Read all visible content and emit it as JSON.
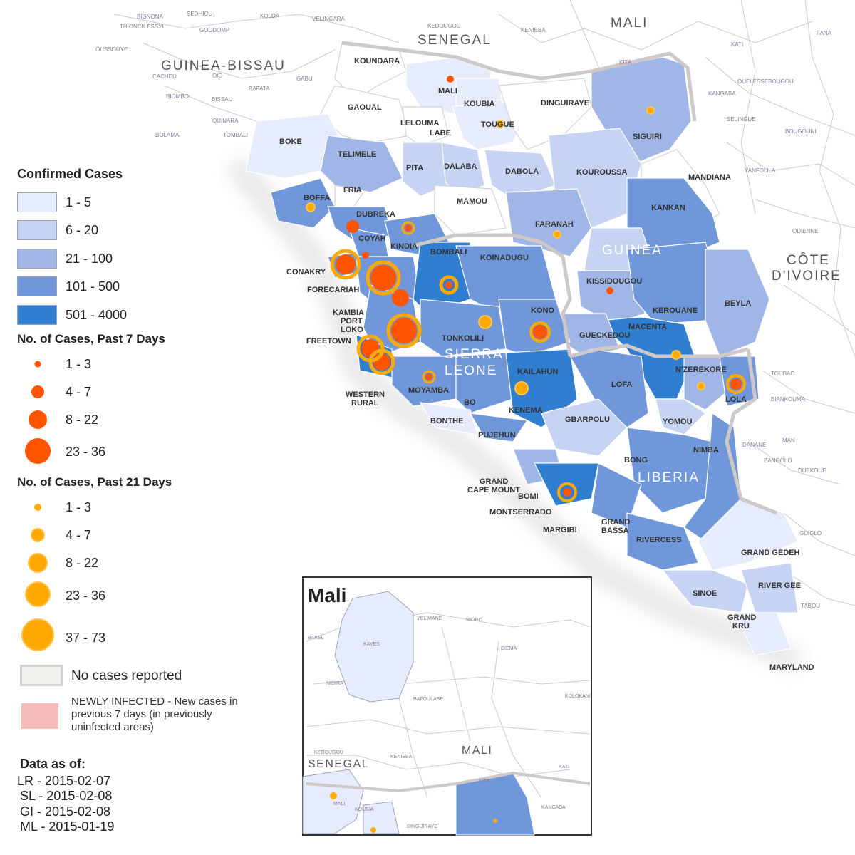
{
  "colors": {
    "c1": "#e6ecfb",
    "c2": "#c6d3f2",
    "c3": "#9fb6e6",
    "c4": "#6f97d9",
    "c5": "#2f7ed0",
    "red": "#ff5500",
    "orange": "#ffaa00",
    "border": "#cfc8c8",
    "nocase": "#f3f1ee",
    "newly": "#f6bcbc"
  },
  "legend": {
    "confirmed_title": "Confirmed Cases",
    "confirmed_classes": [
      "1 - 5",
      "6 - 20",
      "21 - 100",
      "101 - 500",
      "501 - 4000"
    ],
    "past7_title": "No. of Cases, Past 7 Days",
    "past7_classes": [
      "1 - 3",
      "4 - 7",
      "8 - 22",
      "23 - 36"
    ],
    "past21_title": "No. of Cases, Past 21 Days",
    "past21_classes": [
      "1 - 3",
      "4 - 7",
      "8 - 22",
      "23 - 36",
      "37 - 73"
    ],
    "no_cases": "No cases reported",
    "newly_infected": "NEWLY INFECTED - New cases in previous 7 days (in previously uninfected areas)",
    "data_as_of_title": "Data as of:",
    "data_as_of": [
      "LR - 2015-02-07",
      "SL - 2015-02-08",
      "GI - 2015-02-08",
      "ML - 2015-01-19"
    ]
  },
  "countries": {
    "senegal": "SENEGAL",
    "mali": "MALI",
    "guinea_bissau": "GUINEA-BISSAU",
    "guinea": "GUINEA",
    "sierra_leone_1": "SIERRA",
    "sierra_leone_2": "LEONE",
    "liberia": "LIBERIA",
    "cote_divoire_1": "CÔTE",
    "cote_divoire_2": "D'IVOIRE"
  },
  "districts": {
    "koundara": "KOUNDARA",
    "mali": "MALI",
    "koubia": "KOUBIA",
    "gaoual": "GAOUAL",
    "lelouma": "LELOUMA",
    "labe": "LABE",
    "tougue": "TOUGUE",
    "dinguiraye": "DINGUIRAYE",
    "siguiri": "SIGUIRI",
    "boke": "BOKE",
    "telimele": "TELIMELE",
    "pita": "PITA",
    "dalaba": "DALABA",
    "dabola": "DABOLA",
    "kouroussa": "KOUROUSSA",
    "mandiana": "MANDIANA",
    "boffa": "BOFFA",
    "fria": "FRIA",
    "mamou": "MAMOU",
    "kankan": "KANKAN",
    "dubreka": "DUBREKA",
    "faranah": "FARANAH",
    "coyah": "COYAH",
    "kindia": "KINDIA",
    "bombali": "BOMBALI",
    "koinadugu": "KOINADUGU",
    "conakry": "CONAKRY",
    "forecariah": "FORECARIAH",
    "kissidougou": "KISSIDOUGOU",
    "kambia": "KAMBIA",
    "port": "PORT",
    "loko": "LOKO",
    "kono": "KONO",
    "kerouane": "KEROUANE",
    "beyla": "BEYLA",
    "macenta": "MACENTA",
    "tonkolili": "TONKOLILI",
    "gueckedou": "GUECKEDOU",
    "freetown": "FREETOWN",
    "nzerekore": "N'ZEREKORE",
    "kailahun": "KAILAHUN",
    "moyamba": "MOYAMBA",
    "lofa": "LOFA",
    "lola": "LOLA",
    "western": "WESTERN",
    "rural": "RURAL",
    "bo": "BO",
    "kenema": "KENEMA",
    "yomou": "YOMOU",
    "bonthe": "BONTHE",
    "gbarpolu": "GBARPOLU",
    "pujehun": "PUJEHUN",
    "nimba": "NIMBA",
    "bong": "BONG",
    "grand": "GRAND",
    "cape_mount": "CAPE MOUNT",
    "bomi": "BOMI",
    "montserrado": "MONTSERRADO",
    "margibi": "MARGIBI",
    "grand_bassa_1": "GRAND",
    "grand_bassa_2": "BASSA",
    "rivercess": "RIVERCESS",
    "grand_gedeh": "GRAND GEDEH",
    "river_gee": "RIVER GEE",
    "sinoe": "SINOE",
    "grand_kru_1": "GRAND",
    "grand_kru_2": "KRU",
    "maryland": "MARYLAND"
  },
  "small_labels": [
    "BIGNONA",
    "SEDHIOU",
    "KOLDA",
    "VELINGARA",
    "KEDOUGOU",
    "KENIEBA",
    "KATI",
    "FANA",
    "THIONCK ESSYL",
    "GOUDOMP",
    "OUSSOUYE",
    "CACHEU",
    "OIO",
    "BAFATA",
    "GABU",
    "BIOMBO",
    "BISSAU",
    "QUINARA",
    "TOMBALI",
    "BOLAMA",
    "KITA",
    "KANGABA",
    "OUELESSEBOUGOU",
    "SELINGUE",
    "BOUGOUNI",
    "YANFOLILA",
    "ODIENNE",
    "TOUBAC",
    "BIANKOUMA",
    "MAN",
    "DANANE",
    "BANGOLO",
    "DUEKOUE",
    "GUIGLO",
    "TABOU"
  ],
  "inset": {
    "title": "Mali",
    "senegal": "SENEGAL",
    "mali": "MALI",
    "labels": [
      "YELIMANE",
      "NIORO",
      "KAYES",
      "DIEMA",
      "BAKEL",
      "NIDIRA",
      "BAFOULABE",
      "KOLOKANI",
      "KEDOUGOU",
      "KENIEBA",
      "KATI",
      "KITA",
      "KANGABA",
      "MALI",
      "KOUBIA",
      "DINGUIRAYE"
    ]
  }
}
